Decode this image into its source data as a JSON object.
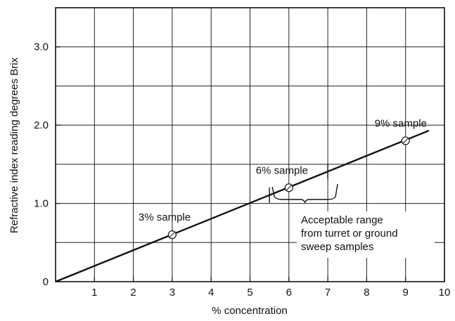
{
  "chart_data": {
    "type": "line",
    "title": "",
    "xlabel": "% concentration",
    "ylabel": "Refractive index reading degrees Brix",
    "xlim": [
      0,
      10
    ],
    "ylim": [
      0,
      3.5
    ],
    "grid": true,
    "x_ticks": [
      {
        "value": 1,
        "label": "1"
      },
      {
        "value": 2,
        "label": "2"
      },
      {
        "value": 3,
        "label": "3"
      },
      {
        "value": 4,
        "label": "4"
      },
      {
        "value": 5,
        "label": "5"
      },
      {
        "value": 6,
        "label": "6"
      },
      {
        "value": 7,
        "label": "7"
      },
      {
        "value": 8,
        "label": "8"
      },
      {
        "value": 9,
        "label": "9"
      },
      {
        "value": 10,
        "label": "10"
      }
    ],
    "y_ticks": [
      {
        "value": 0,
        "label": "0"
      },
      {
        "value": 1.0,
        "label": "1.0"
      },
      {
        "value": 2.0,
        "label": "2.0"
      },
      {
        "value": 3.0,
        "label": "3.0"
      }
    ],
    "series": [
      {
        "x": [
          0,
          9.6
        ],
        "y": [
          0,
          1.93
        ]
      }
    ],
    "points": [
      {
        "x": 3,
        "y": 0.6,
        "label": "3% sample"
      },
      {
        "x": 6,
        "y": 1.2,
        "label": "6% sample"
      },
      {
        "x": 9,
        "y": 1.8,
        "label": "9% sample"
      }
    ],
    "range": {
      "x_from": 5.5,
      "x_to": 7.0,
      "label_lines": [
        "Acceptable range",
        "from turret or ground",
        "sweep samples"
      ]
    }
  }
}
